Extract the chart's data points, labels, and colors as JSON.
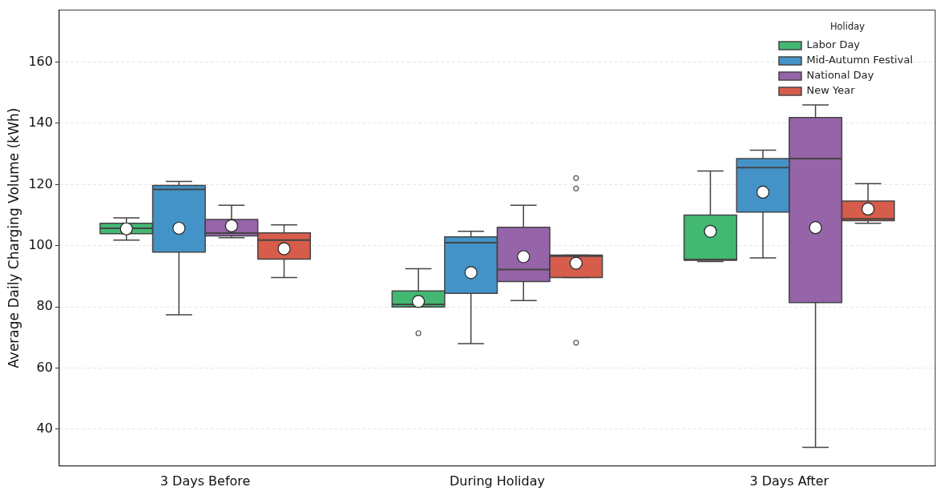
{
  "chart_data": {
    "type": "box",
    "ylabel": "Average Daily Charging Volume (kWh)",
    "categories": [
      "3 Days Before",
      "During Holiday",
      "3 Days After"
    ],
    "ylim": [
      28,
      177
    ],
    "yticks": [
      40,
      60,
      80,
      100,
      120,
      140,
      160
    ],
    "grid": "y",
    "legend": "top right",
    "legend_title": "Holiday",
    "series": [
      {
        "name": "Labor Day",
        "color": "#43b872",
        "boxes": [
          {
            "low": 101.8,
            "q1": 103.9,
            "median": 105.7,
            "q3": 107.3,
            "high": 109.1,
            "mean": 105.5
          },
          {
            "low": 80,
            "q1": 80,
            "median": 80.8,
            "q3": 85.2,
            "high": 92.5,
            "mean": 81.8,
            "outliers": [
              71.4
            ]
          },
          {
            "low": 94.8,
            "q1": 95.2,
            "median": 95.5,
            "q3": 110,
            "high": 124.4,
            "mean": 104.7
          }
        ]
      },
      {
        "name": "Mid-Autumn Festival",
        "color": "#4493c8",
        "boxes": [
          {
            "low": 77.4,
            "q1": 97.9,
            "median": 118.4,
            "q3": 119.7,
            "high": 121,
            "mean": 105.7
          },
          {
            "low": 68,
            "q1": 84.4,
            "median": 101,
            "q3": 102.9,
            "high": 104.7,
            "mean": 91.2
          },
          {
            "low": 96,
            "q1": 111,
            "median": 125.5,
            "q3": 128.5,
            "high": 131.2,
            "mean": 117.5
          }
        ]
      },
      {
        "name": "National Day",
        "color": "#9664a9",
        "boxes": [
          {
            "low": 102.6,
            "q1": 103.2,
            "median": 104.1,
            "q3": 108.6,
            "high": 113.2,
            "mean": 106.5
          },
          {
            "low": 82.1,
            "q1": 88.3,
            "median": 92.2,
            "q3": 106,
            "high": 113.2,
            "mean": 96.4
          },
          {
            "low": 34.1,
            "q1": 81.4,
            "median": 128.5,
            "q3": 141.9,
            "high": 146,
            "mean": 105.9
          }
        ]
      },
      {
        "name": "New Year",
        "color": "#d65c4b",
        "boxes": [
          {
            "low": 89.6,
            "q1": 95.6,
            "median": 101.8,
            "q3": 104.2,
            "high": 106.8,
            "mean": 99
          },
          {
            "low": 89.6,
            "q1": 89.6,
            "median": 96.6,
            "q3": 96.9,
            "high": 96.9,
            "mean": 94.3,
            "outliers": [
              122.1,
              118.7,
              68.3
            ]
          },
          {
            "low": 107.3,
            "q1": 108.2,
            "median": 108.8,
            "q3": 114.6,
            "high": 120.3,
            "mean": 112
          }
        ]
      }
    ]
  }
}
